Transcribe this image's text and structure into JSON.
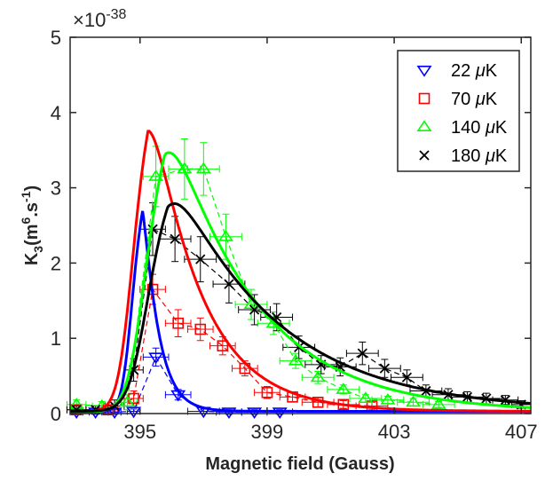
{
  "chart_data": {
    "type": "scatter",
    "xlabel": "Magnetic field (Gauss)",
    "ylabel_main": "K",
    "ylabel_sub": "3",
    "ylabel_rest": "(m",
    "ylabel_sup1": "6",
    "ylabel_mid": ".s",
    "ylabel_sup2": "-1",
    "ylabel_close": ")",
    "y_exponent_prefix": "×10",
    "y_exponent": "-38",
    "xlim": [
      392.8,
      407.3
    ],
    "ylim": [
      0,
      5
    ],
    "xticks": [
      395,
      399,
      403,
      407
    ],
    "xtick_labels": [
      "395",
      "399",
      "403",
      "407"
    ],
    "yticks": [
      0,
      1,
      2,
      3,
      4,
      5
    ],
    "ytick_labels": [
      "0",
      "1",
      "2",
      "3",
      "4",
      "5"
    ],
    "legend_position": "top-right",
    "series": [
      {
        "name": "22 μK",
        "label_pre": "22 ",
        "label_mu": "μ",
        "label_post": "K",
        "color": "#0000ff",
        "marker": "triangle-down",
        "x": [
          393.0,
          393.6,
          394.2,
          394.8,
          395.5,
          396.2,
          397.0,
          397.8,
          398.6,
          399.4
        ],
        "y": [
          0.02,
          0.02,
          0.02,
          0.03,
          0.75,
          0.25,
          0.03,
          0.02,
          0.02,
          0.02
        ],
        "xerr": [
          0.2,
          0.2,
          0.2,
          0.2,
          0.4,
          0.4,
          0.5,
          0.4,
          0.4,
          0.4
        ],
        "yerr": [
          0.03,
          0.03,
          0.03,
          0.03,
          0.12,
          0.07,
          0.03,
          0.03,
          0.03,
          0.03
        ],
        "fit_params": {
          "x0": 394.6,
          "amp": 3.3,
          "rise": 0.22,
          "decay": 0.45,
          "base": 0.03
        }
      },
      {
        "name": "70 μK",
        "label_pre": "70 ",
        "label_mu": "μ",
        "label_post": "K",
        "color": "#ff0000",
        "marker": "square",
        "x": [
          393.0,
          394.0,
          394.8,
          395.4,
          396.2,
          396.9,
          397.6,
          398.3,
          399.0,
          399.8,
          400.6,
          401.4,
          402.3
        ],
        "y": [
          0.05,
          0.05,
          0.2,
          1.65,
          1.2,
          1.12,
          0.9,
          0.6,
          0.28,
          0.22,
          0.15,
          0.12,
          0.1
        ],
        "xerr": [
          0.3,
          0.3,
          0.3,
          0.4,
          0.4,
          0.4,
          0.4,
          0.4,
          0.4,
          0.4,
          0.5,
          0.5,
          0.5
        ],
        "yerr": [
          0.05,
          0.05,
          0.1,
          0.2,
          0.18,
          0.15,
          0.12,
          0.1,
          0.08,
          0.06,
          0.06,
          0.05,
          0.05
        ],
        "fit_params": {
          "x0": 394.55,
          "amp": 4.6,
          "rise": 0.32,
          "decay": 1.55,
          "base": 0.03
        }
      },
      {
        "name": "140 μK",
        "label_pre": "140 ",
        "label_mu": "μ",
        "label_post": "K",
        "color": "#00ff00",
        "marker": "triangle-up",
        "x": [
          393.0,
          393.8,
          394.6,
          395.5,
          396.4,
          397.0,
          397.7,
          398.5,
          399.2,
          399.9,
          400.6,
          401.4,
          402.1,
          402.8,
          403.6,
          404.4
        ],
        "y": [
          0.12,
          0.1,
          0.15,
          3.15,
          3.25,
          3.25,
          2.35,
          1.45,
          1.2,
          0.7,
          0.48,
          0.32,
          0.2,
          0.18,
          0.15,
          0.12
        ],
        "xerr": [
          0.3,
          0.3,
          0.3,
          0.4,
          0.5,
          0.5,
          0.5,
          0.5,
          0.5,
          0.5,
          0.5,
          0.5,
          0.5,
          0.5,
          0.5,
          0.5
        ],
        "yerr": [
          0.06,
          0.06,
          0.1,
          0.4,
          0.4,
          0.35,
          0.3,
          0.2,
          0.15,
          0.1,
          0.08,
          0.06,
          0.05,
          0.05,
          0.05,
          0.04
        ],
        "fit_params": {
          "x0": 394.9,
          "amp": 4.22,
          "rise": 0.4,
          "decay": 2.7,
          "base": 0.02
        }
      },
      {
        "name": "180 μK",
        "label_pre": "180 ",
        "label_mu": "μ",
        "label_post": "K",
        "color": "#000000",
        "marker": "cross",
        "x": [
          393.0,
          393.6,
          394.2,
          394.8,
          395.4,
          396.1,
          396.9,
          397.8,
          398.6,
          399.3,
          400.0,
          400.7,
          401.3,
          402.0,
          402.7,
          403.4,
          404.0,
          404.7,
          405.3,
          405.9,
          406.5,
          407.0
        ],
        "y": [
          0.05,
          0.05,
          0.1,
          0.58,
          2.45,
          2.32,
          2.05,
          1.72,
          1.38,
          1.28,
          0.88,
          0.65,
          0.62,
          0.8,
          0.6,
          0.48,
          0.3,
          0.25,
          0.22,
          0.2,
          0.18,
          0.12
        ],
        "xerr": [
          0.3,
          0.3,
          0.3,
          0.3,
          0.4,
          0.5,
          0.5,
          0.5,
          0.5,
          0.5,
          0.5,
          0.5,
          0.5,
          0.5,
          0.5,
          0.5,
          0.5,
          0.5,
          0.5,
          0.5,
          0.4,
          0.3
        ],
        "yerr": [
          0.05,
          0.05,
          0.08,
          0.15,
          0.35,
          0.3,
          0.3,
          0.25,
          0.2,
          0.18,
          0.15,
          0.12,
          0.12,
          0.15,
          0.12,
          0.1,
          0.08,
          0.08,
          0.07,
          0.07,
          0.06,
          0.05
        ],
        "fit_params": {
          "x0": 394.95,
          "amp": 3.35,
          "rise": 0.42,
          "decay": 3.3,
          "base": 0.03
        }
      }
    ]
  }
}
